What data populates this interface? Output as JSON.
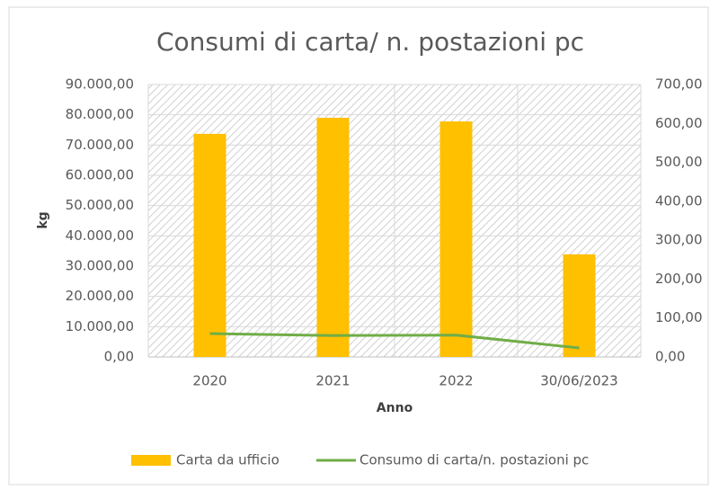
{
  "chart_data": {
    "type": "bar",
    "title": "Consumi di carta/ n. postazioni pc",
    "x_label": "Anno",
    "y_label": "kg",
    "categories": [
      "2020",
      "2021",
      "2022",
      "30/06/2023"
    ],
    "series": [
      {
        "name": "Carta da ufficio",
        "color": "#ffc000",
        "type": "bar",
        "values": [
          73700,
          79000,
          77800,
          33900
        ]
      },
      {
        "name": "Consumo di carta/n. postazioni pc",
        "color": "#70ad47",
        "type": "line",
        "axis": "y2",
        "values": [
          60,
          55,
          56,
          23
        ]
      }
    ],
    "ylim": [
      0,
      90000
    ],
    "yticks": [
      {
        "value": 0,
        "label": "0,00"
      },
      {
        "value": 10000,
        "label": "10.000,00"
      },
      {
        "value": 20000,
        "label": "20.000,00"
      },
      {
        "value": 30000,
        "label": "30.000,00"
      },
      {
        "value": 40000,
        "label": "40.000,00"
      },
      {
        "value": 50000,
        "label": "50.000,00"
      },
      {
        "value": 60000,
        "label": "60.000,00"
      },
      {
        "value": 70000,
        "label": "70.000,00"
      },
      {
        "value": 80000,
        "label": "80.000,00"
      },
      {
        "value": 90000,
        "label": "90.000,00"
      }
    ],
    "y2lim": [
      0,
      700
    ],
    "y2ticks": [
      {
        "value": 0,
        "label": "0,00"
      },
      {
        "value": 100,
        "label": "100,00"
      },
      {
        "value": 200,
        "label": "200,00"
      },
      {
        "value": 300,
        "label": "300,00"
      },
      {
        "value": 400,
        "label": "400,00"
      },
      {
        "value": 500,
        "label": "500,00"
      },
      {
        "value": 600,
        "label": "600,00"
      },
      {
        "value": 700,
        "label": "700,00"
      }
    ],
    "grid": true,
    "legend": "bottom"
  }
}
